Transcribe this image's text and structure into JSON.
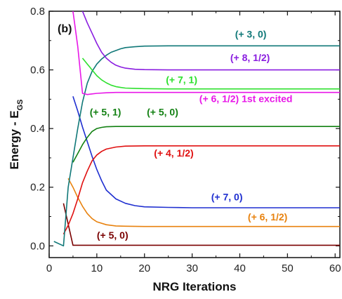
{
  "chart_data": {
    "type": "line",
    "panel_label": "(b)",
    "xlabel": "NRG Iterations",
    "ylabel_main": "Energy - E",
    "ylabel_sub": "GS",
    "xlim": [
      0,
      61
    ],
    "ylim": [
      -0.04,
      0.8
    ],
    "xticks": [
      0,
      10,
      20,
      30,
      40,
      50,
      60
    ],
    "xtick_labels": [
      "0",
      "10",
      "20",
      "30",
      "40",
      "50",
      "60"
    ],
    "yticks": [
      0.0,
      0.2,
      0.4,
      0.6,
      0.8
    ],
    "ytick_labels": [
      "0.0",
      "0.2",
      "0.4",
      "0.6",
      "0.8"
    ],
    "grid": false,
    "series": [
      {
        "name": "(+ 5, 0)",
        "color": "#7a0000",
        "x": [
          3,
          5,
          6,
          8,
          10,
          20,
          30,
          40,
          50,
          61
        ],
        "y": [
          0.145,
          0.002,
          0.002,
          0.002,
          0.002,
          0.002,
          0.002,
          0.002,
          0.002,
          0.002
        ],
        "label_x": 10,
        "label_y": 0.025,
        "anchor": "start"
      },
      {
        "name": "(+ 6, 1/2)",
        "color": "#e8820e",
        "x": [
          4,
          5,
          6,
          7,
          8,
          9,
          10,
          12,
          14,
          16,
          20,
          30,
          40,
          50,
          61
        ],
        "y": [
          0.23,
          0.2,
          0.165,
          0.135,
          0.11,
          0.093,
          0.082,
          0.072,
          0.068,
          0.067,
          0.066,
          0.066,
          0.066,
          0.066,
          0.066
        ],
        "label_x": 50,
        "label_y": 0.087,
        "anchor": "end"
      },
      {
        "name": "(+ 7, 0)",
        "color": "#1f2fd0",
        "x": [
          5,
          6,
          7,
          8,
          9,
          10,
          11,
          12,
          14,
          16,
          18,
          20,
          25,
          30,
          40,
          50,
          61
        ],
        "y": [
          0.51,
          0.46,
          0.405,
          0.355,
          0.305,
          0.26,
          0.222,
          0.19,
          0.16,
          0.145,
          0.137,
          0.133,
          0.131,
          0.13,
          0.13,
          0.13,
          0.13
        ],
        "label_x": 34,
        "label_y": 0.155,
        "anchor": "start"
      },
      {
        "name": "(+ 4, 1/2)",
        "color": "#e01010",
        "x": [
          3,
          4,
          5,
          6,
          7,
          8,
          9,
          10,
          11,
          12,
          14,
          16,
          20,
          30,
          40,
          50,
          61
        ],
        "y": [
          0.04,
          0.07,
          0.11,
          0.16,
          0.215,
          0.255,
          0.29,
          0.31,
          0.322,
          0.33,
          0.337,
          0.34,
          0.341,
          0.341,
          0.341,
          0.341,
          0.341
        ],
        "label_x": 22,
        "label_y": 0.305,
        "anchor": "start"
      },
      {
        "name": "(+ 5, 0)",
        "color": "#128012",
        "x": [
          5,
          6,
          7,
          8,
          9,
          10,
          11,
          12,
          14,
          16,
          20,
          30,
          40,
          50,
          61
        ],
        "y": [
          0.285,
          0.315,
          0.345,
          0.37,
          0.39,
          0.4,
          0.404,
          0.406,
          0.407,
          0.407,
          0.407,
          0.407,
          0.407,
          0.407,
          0.407
        ],
        "label_x": 20.5,
        "label_y": 0.445,
        "anchor": "start"
      },
      {
        "name": "(+ 3, 0)",
        "color": "#107878",
        "x": [
          1,
          3,
          4,
          5,
          6,
          7,
          8,
          9,
          10,
          11,
          12,
          13,
          14,
          15,
          16,
          18,
          20,
          25,
          30,
          40,
          50,
          61
        ],
        "y": [
          0.015,
          0.0,
          0.2,
          0.3,
          0.4,
          0.49,
          0.555,
          0.595,
          0.62,
          0.637,
          0.65,
          0.66,
          0.666,
          0.672,
          0.676,
          0.679,
          0.681,
          0.682,
          0.682,
          0.682,
          0.682,
          0.682
        ],
        "label_x": 39,
        "label_y": 0.71,
        "anchor": "start"
      },
      {
        "name": "(+ 8, 1/2)",
        "color": "#8a1de0",
        "x": [
          7,
          8,
          9,
          10,
          11,
          12,
          13,
          14,
          15,
          16,
          18,
          20,
          25,
          30,
          40,
          50,
          61
        ],
        "y": [
          0.8,
          0.76,
          0.725,
          0.69,
          0.66,
          0.64,
          0.626,
          0.616,
          0.61,
          0.606,
          0.602,
          0.601,
          0.6,
          0.6,
          0.6,
          0.6,
          0.6
        ],
        "label_x": 38,
        "label_y": 0.63,
        "anchor": "start"
      },
      {
        "name": "(+ 7, 1)",
        "color": "#2ee02e",
        "x": [
          7,
          8,
          9,
          10,
          11,
          12,
          13,
          14,
          15,
          16,
          18,
          20,
          25,
          30,
          40,
          50,
          61
        ],
        "y": [
          0.64,
          0.62,
          0.6,
          0.58,
          0.566,
          0.556,
          0.548,
          0.543,
          0.54,
          0.538,
          0.537,
          0.536,
          0.535,
          0.535,
          0.535,
          0.535,
          0.535
        ],
        "label_x": 24.5,
        "label_y": 0.555,
        "anchor": "start"
      },
      {
        "name": "(+ 6, 1/2)  1st excited",
        "color": "#e817e8",
        "x": [
          5,
          6,
          7,
          8,
          9,
          10,
          12,
          14,
          16,
          20,
          30,
          40,
          50,
          61
        ],
        "y": [
          0.8,
          0.68,
          0.52,
          0.516,
          0.518,
          0.52,
          0.522,
          0.523,
          0.523,
          0.523,
          0.523,
          0.523,
          0.523,
          0.523
        ],
        "label_x": 31.5,
        "label_y": 0.49,
        "anchor": "start"
      },
      {
        "name": "(+ 5, 1)",
        "color": "#128012",
        "x": [],
        "y": [],
        "label_x": 8.5,
        "label_y": 0.445,
        "anchor": "start"
      }
    ]
  }
}
